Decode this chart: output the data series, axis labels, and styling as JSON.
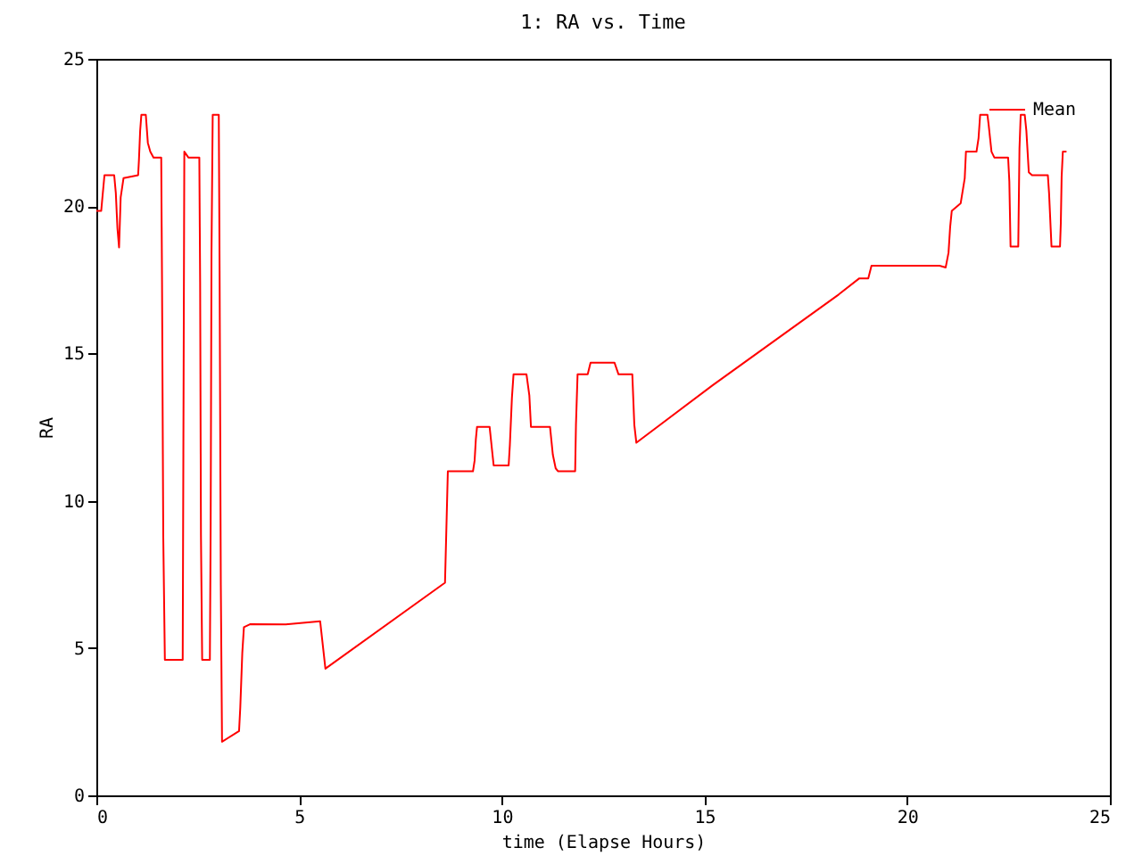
{
  "chart_data": {
    "type": "line",
    "title": "1: RA vs. Time",
    "xlabel": "time (Elapse Hours)",
    "ylabel": "RA",
    "xlim": [
      0,
      25
    ],
    "xticks": [
      0,
      5,
      10,
      15,
      20,
      25
    ],
    "ylim": [
      0,
      25
    ],
    "yticks": [
      0,
      5,
      10,
      15,
      20,
      25
    ],
    "grid": false,
    "legend": "top right",
    "marker": "none",
    "line_style": "solid",
    "series": [
      {
        "name": "Mean",
        "color": "#ff0000",
        "x": [
          0,
          0.12,
          0.14,
          0.2,
          0.44,
          0.48,
          0.52,
          0.56,
          0.6,
          0.67,
          1.03,
          1.05,
          1.08,
          1.11,
          1.22,
          1.27,
          1.33,
          1.41,
          1.6,
          1.62,
          1.65,
          1.69,
          2.13,
          2.15,
          2.17,
          2.27,
          2.54,
          2.56,
          2.58,
          2.61,
          2.8,
          2.82,
          2.84,
          2.87,
          3.02,
          3.04,
          3.07,
          3.1,
          3.52,
          3.55,
          3.6,
          3.64,
          3.79,
          4.67,
          5.52,
          5.65,
          8.6,
          8.67,
          9.29,
          9.33,
          9.36,
          9.39,
          9.7,
          9.78,
          9.8,
          10.17,
          10.2,
          10.25,
          10.29,
          10.61,
          10.68,
          10.72,
          11.19,
          11.26,
          11.33,
          11.39,
          11.81,
          11.83,
          11.87,
          12.12,
          12.19,
          12.78,
          12.88,
          13.22,
          13.27,
          13.32,
          15.2,
          18.31,
          18.82,
          19.04,
          19.12,
          20.8,
          20.95,
          21.02,
          21.06,
          21.1,
          21.32,
          21.42,
          21.45,
          21.71,
          21.76,
          21.8,
          21.98,
          22.01,
          22.08,
          22.15,
          22.49,
          22.52,
          22.55,
          22.74,
          22.77,
          22.8,
          22.9,
          22.94,
          23.0,
          23.08,
          23.47,
          23.5,
          23.54,
          23.56,
          23.77,
          23.79,
          23.81,
          23.84,
          23.93
        ],
        "values": [
          19.84,
          19.84,
          20.15,
          21.05,
          21.05,
          20.45,
          19.25,
          18.6,
          20.3,
          20.95,
          21.05,
          21.55,
          22.55,
          23.1,
          23.1,
          22.15,
          21.85,
          21.65,
          21.65,
          17.4,
          8.84,
          4.6,
          4.6,
          13.2,
          21.85,
          21.65,
          21.65,
          17.4,
          8.84,
          4.6,
          4.6,
          9.26,
          18.4,
          23.1,
          23.1,
          17.8,
          7.14,
          1.82,
          2.18,
          2.98,
          4.84,
          5.71,
          5.81,
          5.8,
          5.91,
          4.3,
          7.22,
          11.0,
          11.0,
          11.36,
          12.07,
          12.51,
          12.51,
          11.46,
          11.2,
          11.2,
          11.9,
          13.48,
          14.29,
          14.29,
          13.58,
          12.51,
          12.51,
          11.56,
          11.1,
          11.0,
          11.0,
          12.57,
          14.29,
          14.29,
          14.69,
          14.69,
          14.29,
          14.29,
          12.57,
          11.97,
          13.92,
          17.0,
          17.55,
          17.55,
          17.98,
          17.98,
          17.92,
          18.42,
          19.29,
          19.84,
          20.1,
          20.95,
          21.85,
          21.85,
          22.3,
          23.1,
          23.1,
          22.76,
          21.85,
          21.65,
          21.65,
          20.84,
          18.63,
          18.63,
          21.95,
          23.1,
          23.1,
          22.56,
          21.15,
          21.05,
          21.05,
          20.44,
          19.23,
          18.63,
          18.63,
          19.43,
          20.99,
          21.85,
          21.85
        ]
      }
    ]
  }
}
